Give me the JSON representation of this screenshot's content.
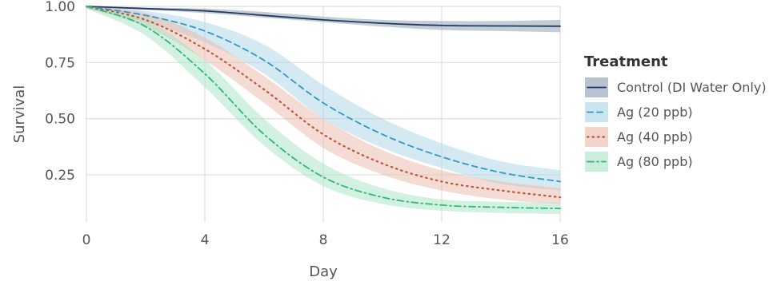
{
  "chart_data": {
    "type": "line",
    "xlabel": "Day",
    "ylabel": "Survival",
    "xlim": [
      0,
      16
    ],
    "ylim": [
      0.04,
      1.0
    ],
    "xticks": [
      0,
      4,
      8,
      12,
      16
    ],
    "xtick_labels": [
      "0",
      "4",
      "8",
      "12",
      "16"
    ],
    "yticks": [
      0.25,
      0.5,
      0.75,
      1.0
    ],
    "ytick_labels": [
      "0.25",
      "0.50",
      "0.75",
      "1.00"
    ],
    "grid": true,
    "legend": {
      "title": "Treatment",
      "placement": "right"
    },
    "series": [
      {
        "name": "Control (DI Water Only)",
        "color": "#1f3a5f",
        "band_color": "#8a9ab0",
        "dash": "solid",
        "x": [
          0,
          2,
          4,
          6,
          8,
          10,
          12,
          14,
          16
        ],
        "y": [
          1.0,
          0.99,
          0.98,
          0.96,
          0.94,
          0.925,
          0.915,
          0.913,
          0.912
        ],
        "lower": [
          0.995,
          0.985,
          0.97,
          0.95,
          0.93,
          0.91,
          0.895,
          0.89,
          0.885
        ],
        "upper": [
          1.0,
          0.995,
          0.99,
          0.975,
          0.955,
          0.94,
          0.935,
          0.935,
          0.94
        ]
      },
      {
        "name": "Ag (20 ppb)",
        "color": "#2e9ac4",
        "band_color": "#a9d3e6",
        "dash": "dash",
        "x": [
          0,
          2,
          4,
          6,
          8,
          10,
          12,
          14,
          16
        ],
        "y": [
          1.0,
          0.96,
          0.89,
          0.76,
          0.57,
          0.43,
          0.33,
          0.26,
          0.22
        ],
        "lower": [
          0.99,
          0.93,
          0.84,
          0.7,
          0.5,
          0.37,
          0.28,
          0.21,
          0.18
        ],
        "upper": [
          1.0,
          0.98,
          0.93,
          0.83,
          0.65,
          0.5,
          0.39,
          0.31,
          0.27
        ]
      },
      {
        "name": "Ag (40 ppb)",
        "color": "#c0553a",
        "band_color": "#eab7a8",
        "dash": "dot",
        "x": [
          0,
          2,
          4,
          6,
          8,
          10,
          12,
          14,
          16
        ],
        "y": [
          1.0,
          0.94,
          0.81,
          0.63,
          0.43,
          0.3,
          0.22,
          0.18,
          0.15
        ],
        "lower": [
          0.99,
          0.91,
          0.76,
          0.57,
          0.37,
          0.25,
          0.18,
          0.14,
          0.12
        ],
        "upper": [
          1.0,
          0.97,
          0.86,
          0.69,
          0.5,
          0.36,
          0.27,
          0.22,
          0.19
        ]
      },
      {
        "name": "Ag (80 ppb)",
        "color": "#2db87a",
        "band_color": "#a5e3c4",
        "dash": "dashdot",
        "x": [
          0,
          2,
          4,
          6,
          8,
          10,
          12,
          14,
          16
        ],
        "y": [
          1.0,
          0.91,
          0.7,
          0.43,
          0.24,
          0.15,
          0.115,
          0.105,
          0.1
        ],
        "lower": [
          0.99,
          0.87,
          0.64,
          0.38,
          0.2,
          0.12,
          0.09,
          0.08,
          0.075
        ],
        "upper": [
          1.0,
          0.94,
          0.76,
          0.5,
          0.3,
          0.19,
          0.14,
          0.13,
          0.125
        ]
      }
    ]
  }
}
